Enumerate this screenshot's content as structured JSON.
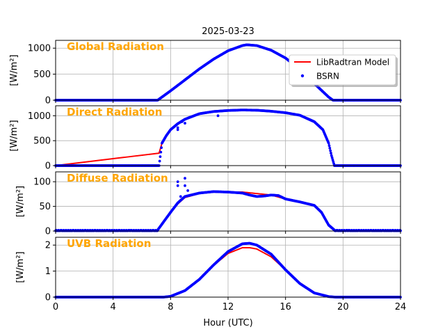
{
  "figure": {
    "title": "2025-03-23",
    "xlabel": "Hour (UTC)",
    "xticks": [
      "0",
      "4",
      "8",
      "12",
      "16",
      "20",
      "24"
    ]
  },
  "legend": {
    "model_label": "LibRadtran Model",
    "obs_label": "BSRN"
  },
  "colors": {
    "model": "#ff0000",
    "obs": "#0000ff",
    "panel_title": "#ffa500",
    "grid": "#b0b0b0"
  },
  "chart_data": [
    {
      "type": "line",
      "title": "Global Radiation",
      "ylabel": "[W/m²]",
      "xlim": [
        0,
        24
      ],
      "ylim": [
        0,
        1150
      ],
      "yticks": [
        0,
        500,
        1000
      ],
      "grid": true,
      "legend": "upper right",
      "sunrise": 7.1,
      "sunset": 19.3,
      "series": [
        {
          "name": "LibRadtran Model",
          "x": [
            7.1,
            8,
            9,
            10,
            11,
            12,
            13,
            13.3,
            14,
            15,
            16,
            17,
            18,
            19,
            19.3
          ],
          "y": [
            0,
            180,
            390,
            600,
            790,
            950,
            1050,
            1065,
            1050,
            960,
            810,
            590,
            320,
            60,
            0
          ]
        },
        {
          "name": "BSRN",
          "x": [
            7.1,
            8,
            9,
            10,
            11,
            12,
            13,
            13.3,
            14,
            15,
            16,
            17,
            18,
            19,
            19.3
          ],
          "y": [
            0,
            180,
            390,
            600,
            790,
            950,
            1050,
            1065,
            1050,
            960,
            810,
            590,
            320,
            60,
            0
          ]
        }
      ]
    },
    {
      "type": "line",
      "title": "Direct Radiation",
      "ylabel": "[W/m²]",
      "xlim": [
        0,
        24
      ],
      "ylim": [
        0,
        1200
      ],
      "yticks": [
        0,
        500,
        1000
      ],
      "grid": true,
      "series": [
        {
          "name": "LibRadtran Model",
          "x": [
            7.2,
            7.4,
            7.7,
            8.0,
            8.5,
            9.0,
            10,
            11,
            12,
            13,
            14,
            15,
            16,
            17,
            18,
            18.6,
            19.0,
            19.2,
            19.4
          ],
          "y": [
            250,
            450,
            600,
            720,
            840,
            930,
            1040,
            1085,
            1105,
            1115,
            1110,
            1090,
            1060,
            1010,
            880,
            720,
            450,
            200,
            0
          ]
        },
        {
          "name": "BSRN",
          "x": [
            7.2,
            7.4,
            7.7,
            8.0,
            8.5,
            9.0,
            10,
            11,
            12,
            13,
            14,
            15,
            16,
            17,
            18,
            18.6,
            19.0,
            19.2,
            19.4
          ],
          "y": [
            0,
            450,
            600,
            720,
            840,
            930,
            1040,
            1085,
            1105,
            1115,
            1110,
            1090,
            1060,
            1010,
            880,
            720,
            450,
            200,
            0
          ]
        }
      ],
      "outliers": {
        "x": [
          8.5,
          8.5,
          8.8,
          9.0,
          11.3
        ],
        "y": [
          760,
          720,
          880,
          850,
          1000
        ]
      }
    },
    {
      "type": "line",
      "title": "Diffuse Radiation",
      "ylabel": "[W/m²]",
      "xlim": [
        0,
        24
      ],
      "ylim": [
        0,
        120
      ],
      "yticks": [
        0,
        50,
        100
      ],
      "grid": true,
      "series": [
        {
          "name": "LibRadtran Model",
          "x": [
            7.1,
            7.5,
            8,
            8.5,
            9,
            10,
            11,
            12,
            13,
            14,
            15,
            16,
            17,
            18,
            18.5,
            19,
            19.4
          ],
          "y": [
            2,
            18,
            38,
            55,
            68,
            76,
            79,
            79,
            79,
            76,
            73,
            65,
            59,
            52,
            38,
            12,
            2
          ]
        },
        {
          "name": "BSRN",
          "x": [
            7.1,
            7.5,
            8,
            8.5,
            9,
            10,
            11,
            12,
            13,
            13.5,
            14,
            14.5,
            15,
            15.5,
            16,
            17,
            18,
            18.5,
            19,
            19.4
          ],
          "y": [
            2,
            18,
            38,
            57,
            70,
            77,
            80,
            79,
            77,
            73,
            70,
            71,
            73,
            72,
            65,
            59,
            52,
            38,
            12,
            2
          ]
        }
      ],
      "outliers": {
        "x": [
          8.5,
          8.5,
          8.7,
          9.0,
          9.0,
          9.2
        ],
        "y": [
          100,
          92,
          70,
          107,
          92,
          82
        ]
      }
    },
    {
      "type": "line",
      "title": "UVB Radiation",
      "ylabel": "[W/m²]",
      "xlim": [
        0,
        24
      ],
      "ylim": [
        0,
        2.3
      ],
      "yticks": [
        0,
        1,
        2
      ],
      "grid": true,
      "series": [
        {
          "name": "LibRadtran Model",
          "x": [
            7.5,
            8,
            9,
            10,
            11,
            12,
            13,
            13.5,
            14,
            15,
            16,
            17,
            18,
            19,
            19.5
          ],
          "y": [
            0,
            0.03,
            0.25,
            0.68,
            1.22,
            1.68,
            1.9,
            1.9,
            1.85,
            1.55,
            1.05,
            0.55,
            0.18,
            0.02,
            0
          ]
        },
        {
          "name": "BSRN",
          "x": [
            7.5,
            8,
            9,
            10,
            11,
            12,
            13,
            13.5,
            14,
            15,
            16,
            17,
            18,
            19,
            19.5
          ],
          "y": [
            0,
            0.03,
            0.25,
            0.68,
            1.24,
            1.75,
            2.05,
            2.07,
            2.0,
            1.65,
            1.05,
            0.52,
            0.16,
            0.02,
            0
          ]
        }
      ]
    }
  ]
}
